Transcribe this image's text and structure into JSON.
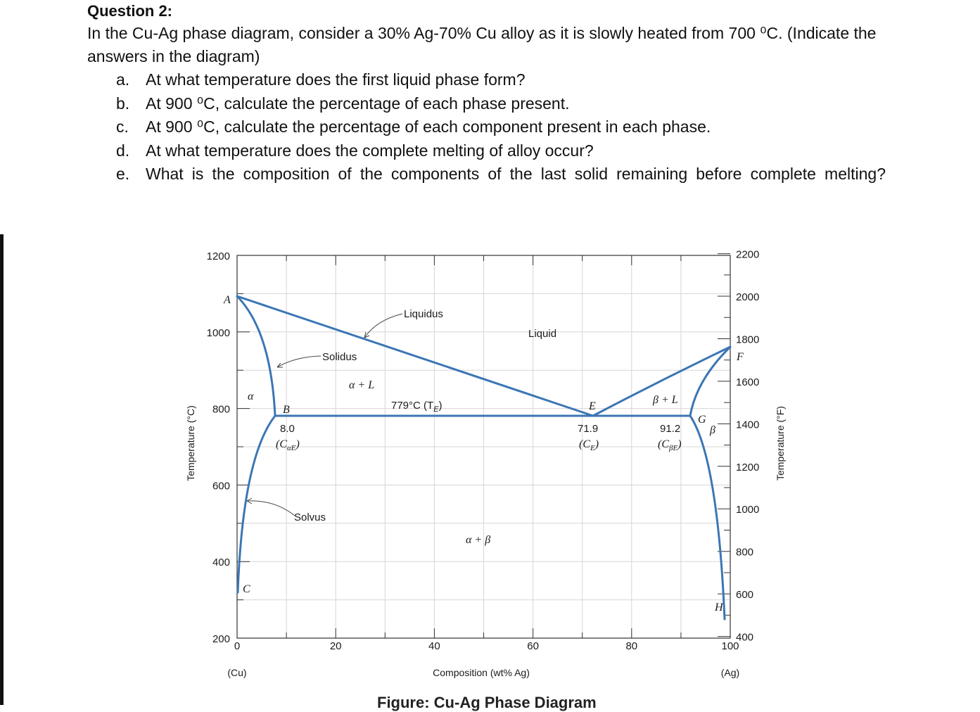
{
  "question": {
    "title": "Question 2:",
    "intro": "In the Cu-Ag phase diagram, consider a 30% Ag-70% Cu alloy as it is slowly heated from 700   ⁰C. (Indicate the answers in the diagram)",
    "items": [
      {
        "letter": "a.",
        "text": "At what temperature does the first liquid phase form?"
      },
      {
        "letter": "b.",
        "text": "At 900 ⁰C, calculate the percentage of each phase present."
      },
      {
        "letter": "c.",
        "text": "At 900 ⁰C, calculate the percentage of each component present in each phase."
      },
      {
        "letter": "d.",
        "text": "At what temperature does the complete melting of alloy occur?"
      },
      {
        "letter": "e.",
        "text": "What is the composition of the components of the last solid remaining before complete melting?"
      }
    ]
  },
  "diagram": {
    "left_axis_title": "Temperature (°C)",
    "right_axis_title": "Temperature (°F)",
    "x_axis_title": "Composition (wt% Ag)",
    "x_left_end_label": "(Cu)",
    "x_right_end_label": "(Ag)",
    "x_ticks": [
      "0",
      "20",
      "40",
      "60",
      "80",
      "100"
    ],
    "y_left_ticks": [
      "200",
      "400",
      "600",
      "800",
      "1000",
      "1200"
    ],
    "y_right_ticks": [
      "400",
      "600",
      "800",
      "1000",
      "1200",
      "1400",
      "1600",
      "1800",
      "2000",
      "2200"
    ],
    "point_labels": {
      "A": "A",
      "B": "B",
      "C": "C",
      "E": "E",
      "F": "F",
      "G": "G",
      "H": "H"
    },
    "region_labels": {
      "liquid": "Liquid",
      "alpha": "α",
      "beta": "β",
      "alpha_l": "α + L",
      "beta_l": "β + L",
      "alpha_beta": "α + β"
    },
    "line_labels": {
      "liquidus": "Liquidus",
      "solidus": "Solidus",
      "solvus": "Solvus"
    },
    "eutectic_label": "779°C (T",
    "eutectic_sub": "E",
    "compositions": {
      "c_alpha_e": {
        "value": "8.0",
        "name": "(C",
        "sub": "αE"
      },
      "c_e": {
        "value": "71.9",
        "name": "(C",
        "sub": "E"
      },
      "c_beta_e": {
        "value": "91.2",
        "name": "(C",
        "sub": "βE"
      }
    },
    "line_color": "#3b76b4",
    "caption": "Figure: Cu-Ag Phase Diagram"
  },
  "chart_data": {
    "type": "phase-diagram",
    "x_unit": "wt% Ag",
    "y_unit": "°C",
    "xlim": [
      0,
      100
    ],
    "ylim": [
      200,
      1200
    ],
    "eutectic": {
      "temperature_C": 779,
      "compositions_wt_Ag": [
        8.0,
        71.9,
        91.2
      ]
    },
    "melting_points_C": {
      "Cu": 1085,
      "Ag": 962
    }
  }
}
